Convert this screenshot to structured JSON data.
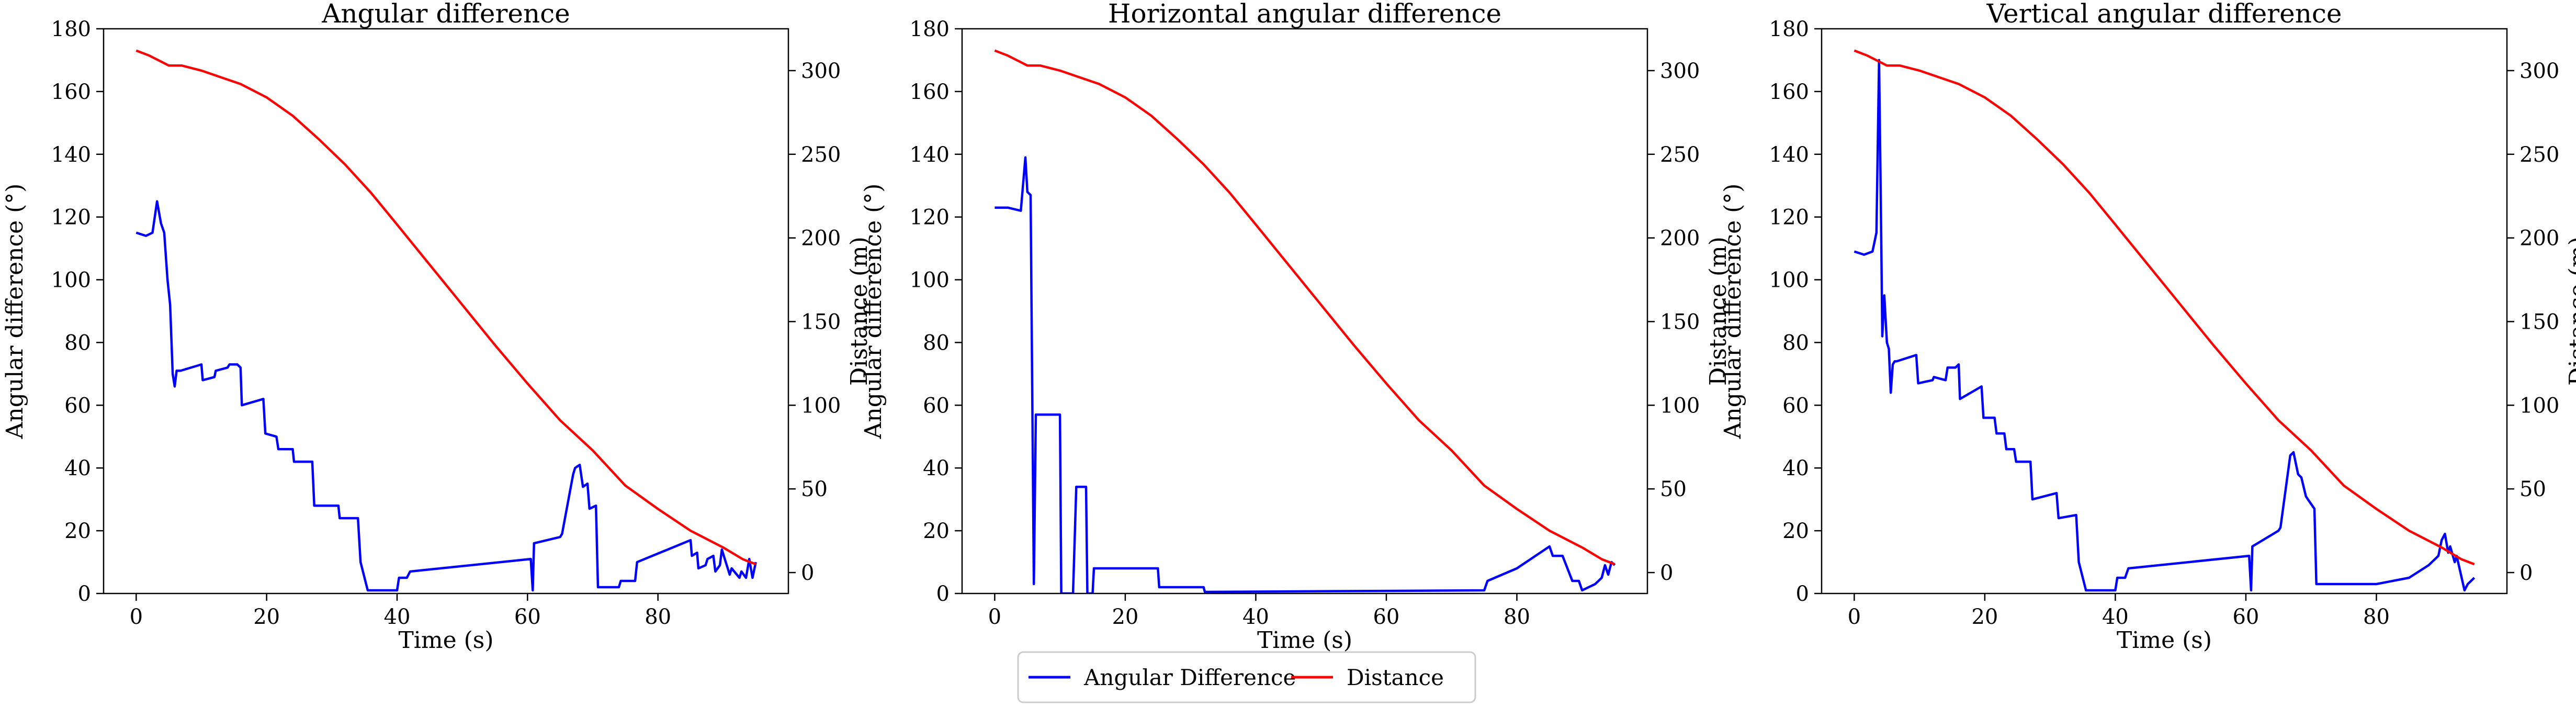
{
  "legend": {
    "placement": "bottom-center",
    "entries": [
      {
        "label": "Angular Difference",
        "color": "#0000ff"
      },
      {
        "label": "Distance",
        "color": "#ff0000"
      }
    ]
  },
  "chart_data": [
    {
      "type": "line",
      "title": "Angular difference",
      "xlabel": "Time (s)",
      "ylabel": "Angular difference (°)",
      "y2label": "Distance (m)",
      "xlim": [
        -5,
        100
      ],
      "ylim": [
        0,
        180
      ],
      "y2lim": [
        -12.5,
        325
      ],
      "xticks": [
        0,
        20,
        40,
        60,
        80
      ],
      "yticks": [
        0,
        20,
        40,
        60,
        80,
        100,
        120,
        140,
        160,
        180
      ],
      "y2ticks": [
        0,
        50,
        100,
        150,
        200,
        250,
        300
      ],
      "grid": false,
      "series": [
        {
          "name": "Angular Difference",
          "axis": "left",
          "color": "#0000ff",
          "x": [
            0,
            1.5,
            2.5,
            3.2,
            3.8,
            4.3,
            4.8,
            5.2,
            5.6,
            5.9,
            6.2,
            6.8,
            10,
            10.2,
            12,
            12.2,
            14,
            14.3,
            15.5,
            16,
            16.2,
            19.5,
            19.8,
            21.5,
            21.8,
            24,
            24.2,
            27,
            27.3,
            31,
            31.2,
            34,
            34.4,
            35.5,
            36,
            40,
            40.3,
            41.5,
            42,
            60.5,
            60.8,
            61,
            65,
            65.3,
            67,
            67.3,
            68,
            68.5,
            69.2,
            69.5,
            70.5,
            70.8,
            74,
            74.3,
            76.5,
            76.8,
            85,
            85.2,
            86,
            86.2,
            87.3,
            87.6,
            88.5,
            88.8,
            89.5,
            89.8,
            91,
            91.3,
            92.5,
            92.8,
            93.5,
            94,
            94.5,
            95
          ],
          "y": [
            115,
            114,
            115,
            125,
            118,
            115,
            100,
            92,
            70,
            66,
            71,
            71,
            73,
            68,
            69,
            71,
            72,
            73,
            73,
            72,
            60,
            62,
            51,
            50,
            46,
            46,
            42,
            42,
            28,
            28,
            24,
            24,
            10,
            1,
            1,
            1,
            5,
            5,
            7,
            11,
            1,
            16,
            18,
            19,
            38,
            40,
            41,
            34,
            35,
            27,
            28,
            2,
            2,
            4,
            4,
            10,
            17,
            12,
            13,
            8,
            9,
            11,
            12,
            7,
            9,
            14,
            6,
            8,
            5,
            7,
            5,
            11,
            5,
            10
          ]
        },
        {
          "name": "Distance",
          "axis": "right",
          "color": "#ff0000",
          "x": [
            0,
            2,
            4,
            5,
            7,
            10,
            13,
            16,
            20,
            24,
            28,
            32,
            36,
            40,
            45,
            50,
            55,
            60,
            65,
            70,
            75,
            80,
            85,
            90,
            93,
            95
          ],
          "y": [
            312,
            309,
            305,
            303,
            303,
            300,
            296,
            292,
            284,
            273,
            259,
            244,
            227,
            208,
            184,
            160,
            136,
            113,
            91,
            73,
            52,
            38,
            25,
            15,
            8,
            5
          ]
        }
      ]
    },
    {
      "type": "line",
      "title": "Horizontal angular difference",
      "xlabel": "Time (s)",
      "ylabel": "Angular difference (°)",
      "y2label": "Distance (m)",
      "xlim": [
        -5,
        100
      ],
      "ylim": [
        0,
        180
      ],
      "y2lim": [
        -12.5,
        325
      ],
      "xticks": [
        0,
        20,
        40,
        60,
        80
      ],
      "yticks": [
        0,
        20,
        40,
        60,
        80,
        100,
        120,
        140,
        160,
        180
      ],
      "y2ticks": [
        0,
        50,
        100,
        150,
        200,
        250,
        300
      ],
      "grid": false,
      "series": [
        {
          "name": "Angular Difference",
          "axis": "left",
          "color": "#0000ff",
          "x": [
            0,
            2,
            4,
            4.7,
            5,
            5.5,
            6,
            6.3,
            10,
            10.2,
            12,
            12.5,
            14,
            14.2,
            15,
            15.2,
            25,
            25.2,
            32,
            32.2,
            75,
            75.5,
            80,
            85,
            85.5,
            87,
            88.5,
            89.5,
            90,
            91,
            92,
            93,
            93.5,
            94,
            94.5,
            95
          ],
          "y": [
            123,
            123,
            122,
            139,
            128,
            127,
            3,
            57,
            57,
            0,
            0,
            34,
            34,
            0,
            0,
            8,
            8,
            2,
            2,
            0.5,
            1,
            4,
            8,
            15,
            12,
            12,
            4,
            4,
            1,
            2,
            3,
            5,
            9,
            6,
            10,
            9
          ]
        },
        {
          "name": "Distance",
          "axis": "right",
          "color": "#ff0000",
          "x": [
            0,
            2,
            4,
            5,
            7,
            10,
            13,
            16,
            20,
            24,
            28,
            32,
            36,
            40,
            45,
            50,
            55,
            60,
            65,
            70,
            75,
            80,
            85,
            90,
            93,
            95
          ],
          "y": [
            312,
            309,
            305,
            303,
            303,
            300,
            296,
            292,
            284,
            273,
            259,
            244,
            227,
            208,
            184,
            160,
            136,
            113,
            91,
            73,
            52,
            38,
            25,
            15,
            8,
            5
          ]
        }
      ]
    },
    {
      "type": "line",
      "title": "Vertical angular difference",
      "xlabel": "Time (s)",
      "ylabel": "Angular difference (°)",
      "y2label": "Distance (m)",
      "xlim": [
        -5,
        100
      ],
      "ylim": [
        0,
        180
      ],
      "y2lim": [
        -12.5,
        325
      ],
      "xticks": [
        0,
        20,
        40,
        60,
        80
      ],
      "yticks": [
        0,
        20,
        40,
        60,
        80,
        100,
        120,
        140,
        160,
        180
      ],
      "y2ticks": [
        0,
        50,
        100,
        150,
        200,
        250,
        300
      ],
      "grid": false,
      "series": [
        {
          "name": "Angular Difference",
          "axis": "left",
          "color": "#0000ff",
          "x": [
            0,
            1.5,
            2.8,
            3.4,
            3.8,
            4.1,
            4.3,
            4.6,
            5,
            5.3,
            5.6,
            5.9,
            6.2,
            6.5,
            9.5,
            9.8,
            12,
            12.2,
            14,
            14.3,
            15.5,
            16,
            16.2,
            19.5,
            19.8,
            21.5,
            21.8,
            23,
            23.3,
            24.5,
            24.8,
            27,
            27.3,
            31,
            31.3,
            34,
            34.4,
            35.5,
            36,
            40,
            40.3,
            41.5,
            42,
            60.5,
            60.8,
            61,
            65,
            65.3,
            66.8,
            67.3,
            68,
            68.5,
            69.2,
            69.5,
            70.5,
            70.8,
            80,
            85,
            88,
            89.5,
            90,
            90.5,
            91,
            91.3,
            92,
            92.3,
            93.5,
            94,
            94.5,
            95
          ],
          "y": [
            109,
            108,
            109,
            115,
            170,
            120,
            82,
            95,
            80,
            78,
            64,
            73,
            74,
            74,
            76,
            67,
            68,
            69,
            68,
            72,
            72,
            73,
            62,
            66,
            56,
            56,
            51,
            51,
            46,
            46,
            42,
            42,
            30,
            32,
            24,
            25,
            10,
            1,
            1,
            1,
            5,
            5,
            8,
            12,
            1,
            15,
            20,
            21,
            44,
            45,
            38,
            37,
            31,
            30,
            27,
            3,
            3,
            5,
            9,
            12,
            17,
            19,
            13,
            15,
            10,
            12,
            1,
            3,
            4,
            5
          ]
        },
        {
          "name": "Distance",
          "axis": "right",
          "color": "#ff0000",
          "x": [
            0,
            2,
            4,
            5,
            7,
            10,
            13,
            16,
            20,
            24,
            28,
            32,
            36,
            40,
            45,
            50,
            55,
            60,
            65,
            70,
            75,
            80,
            85,
            90,
            93,
            95
          ],
          "y": [
            312,
            309,
            305,
            303,
            303,
            300,
            296,
            292,
            284,
            273,
            259,
            244,
            227,
            208,
            184,
            160,
            136,
            113,
            91,
            73,
            52,
            38,
            25,
            15,
            8,
            5
          ]
        }
      ]
    }
  ]
}
